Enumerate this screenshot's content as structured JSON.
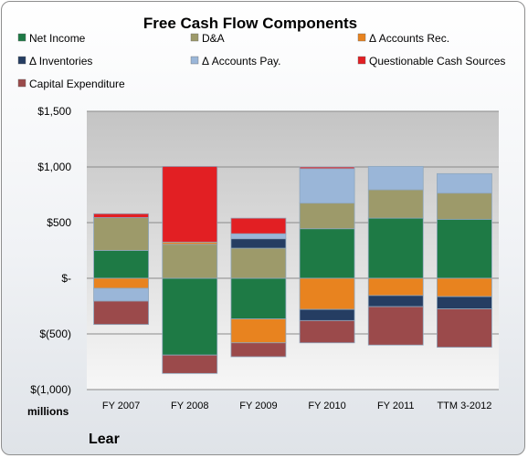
{
  "chart_data": {
    "type": "bar",
    "stacked": true,
    "title": "Free Cash Flow Components",
    "units_label": "millions",
    "footer_label": "Lear",
    "categories": [
      "FY 2007",
      "FY 2008",
      "FY 2009",
      "FY 2010",
      "FY 2011",
      "TTM 3-2012"
    ],
    "ylim": [
      -1000,
      1500
    ],
    "y_ticks": [
      {
        "value": 1500,
        "label": "$1,500"
      },
      {
        "value": 1000,
        "label": "$1,000"
      },
      {
        "value": 500,
        "label": "$500"
      },
      {
        "value": 0,
        "label": "$-"
      },
      {
        "value": -500,
        "label": "$(500)"
      },
      {
        "value": -1000,
        "label": "$(1,000)"
      }
    ],
    "grid": true,
    "legend_position": "top",
    "series": [
      {
        "name": "Net Income",
        "color": "#1e7a45",
        "values": [
          250,
          -690,
          -365,
          445,
          540,
          530
        ]
      },
      {
        "name": "D&A",
        "color": "#9d9a6a",
        "values": [
          295,
          305,
          270,
          230,
          255,
          235
        ]
      },
      {
        "name": "Δ Accounts Rec.",
        "color": "#e8831f",
        "values": [
          -90,
          20,
          -215,
          -280,
          -155,
          -165
        ]
      },
      {
        "name": "Δ Inventories",
        "color": "#253d62",
        "values": [
          0,
          0,
          85,
          -100,
          -100,
          -110
        ]
      },
      {
        "name": "Δ Accounts Pay.",
        "color": "#9ab6d8",
        "values": [
          -115,
          0,
          45,
          310,
          210,
          175
        ]
      },
      {
        "name": "Questionable Cash Sources",
        "color": "#e21f23",
        "values": [
          35,
          680,
          140,
          15,
          0,
          0
        ]
      },
      {
        "name": "Capital Expenditure",
        "color": "#9b4a4b",
        "values": [
          -210,
          -165,
          -125,
          -200,
          -345,
          -345
        ]
      }
    ]
  }
}
